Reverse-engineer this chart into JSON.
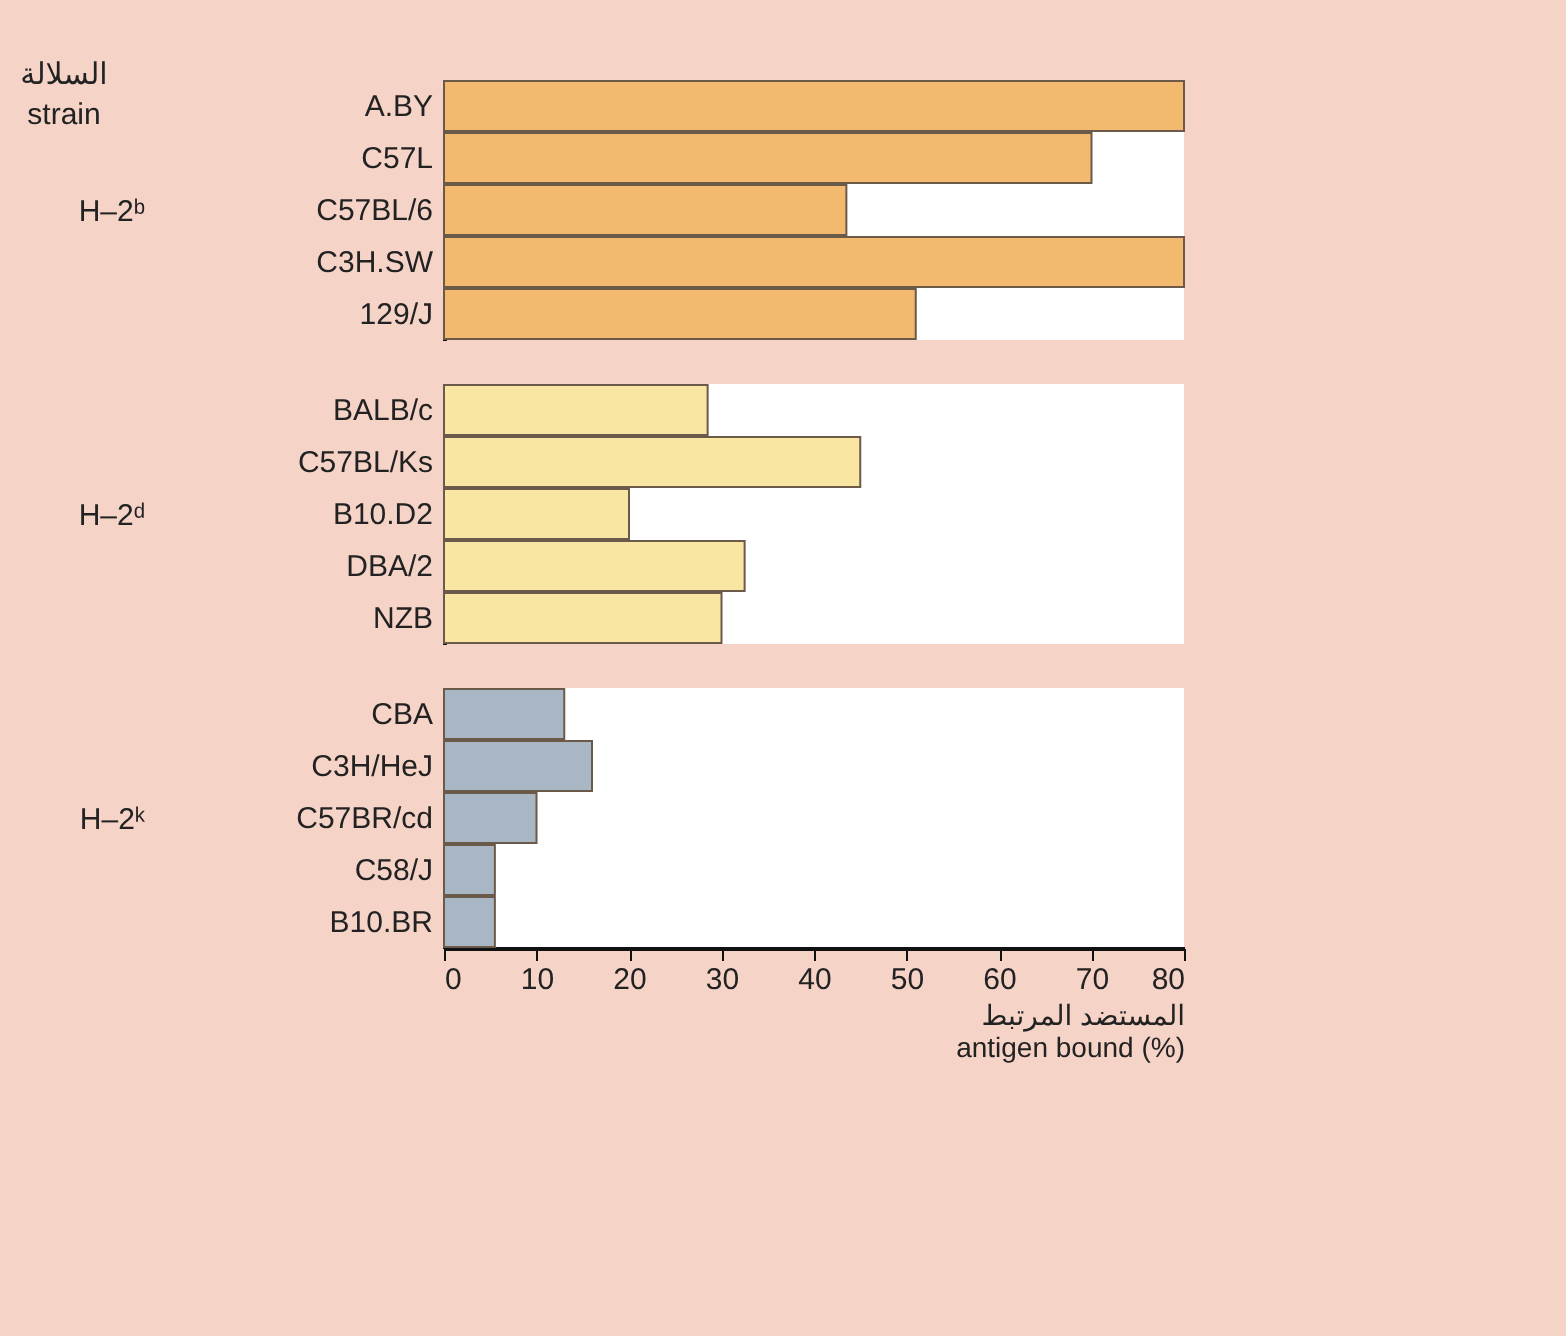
{
  "chart_data": [
    {
      "type": "bar",
      "orientation": "horizontal",
      "ylabel": "H–2ᵇ",
      "annotations": [
        "السلالة",
        "strain"
      ],
      "categories": [
        "A.BY",
        "C57L",
        "C57BL/6",
        "C3H.SW",
        "129/J"
      ],
      "values": [
        80,
        70,
        43.5,
        80,
        51
      ],
      "color": "#f2b96f",
      "xlim": [
        0,
        80
      ],
      "xticks": [
        0,
        10,
        20,
        30,
        40,
        50,
        60,
        70,
        80
      ],
      "tick_labels": "y"
    },
    {
      "type": "bar",
      "orientation": "horizontal",
      "ylabel": "H–2ᵈ",
      "categories": [
        "BALB/c",
        "C57BL/Ks",
        "B10.D2",
        "DBA/2",
        "NZB"
      ],
      "values": [
        28.5,
        45,
        20,
        32.5,
        30
      ],
      "color": "#f8e6a2",
      "xlim": [
        0,
        80
      ],
      "xticks": [
        0,
        10,
        20,
        30,
        40,
        50,
        60,
        70,
        80
      ],
      "tick_labels": "y"
    },
    {
      "type": "bar",
      "orientation": "horizontal",
      "ylabel": "H–2ᵏ",
      "xlabel": "المستضد المرتبط\nantigen bound (%)",
      "categories": [
        "CBA",
        "C3H/HeJ",
        "C57BR/cd",
        "C58/J",
        "B10.BR"
      ],
      "values": [
        13,
        16,
        10,
        5.5,
        5.5
      ],
      "color": "#a9b7c4",
      "xlim": [
        0,
        80
      ],
      "xticks": [
        0,
        10,
        20,
        30,
        40,
        50,
        60,
        70,
        80
      ]
    }
  ]
}
